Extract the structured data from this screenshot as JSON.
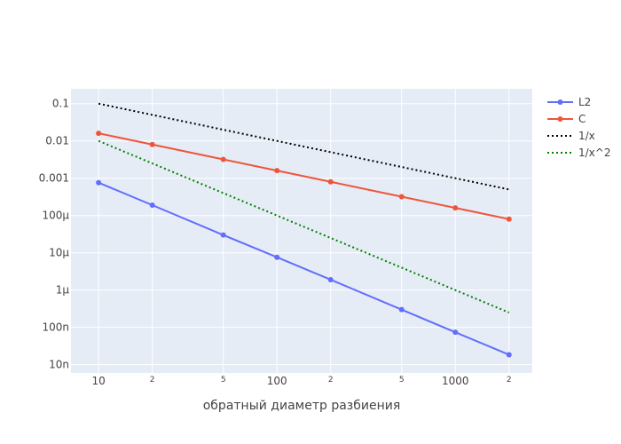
{
  "chart_data": {
    "type": "line",
    "title": "",
    "xlabel": "обратный диаметр разбиения",
    "ylabel": "",
    "x_scale": "log",
    "y_scale": "log",
    "xlim": [
      7,
      2700
    ],
    "ylim": [
      6e-09,
      0.25
    ],
    "grid": true,
    "legend_position": "right",
    "x_major_ticks": [
      {
        "value": 10,
        "label": "10"
      },
      {
        "value": 100,
        "label": "100"
      },
      {
        "value": 1000,
        "label": "1000"
      }
    ],
    "x_minor_ticks": [
      {
        "value": 20,
        "label": "2"
      },
      {
        "value": 50,
        "label": "5"
      },
      {
        "value": 200,
        "label": "2"
      },
      {
        "value": 500,
        "label": "5"
      },
      {
        "value": 2000,
        "label": "2"
      }
    ],
    "y_ticks": [
      {
        "value": 0.1,
        "label": "0.1"
      },
      {
        "value": 0.01,
        "label": "0.01"
      },
      {
        "value": 0.001,
        "label": "0.001"
      },
      {
        "value": 0.0001,
        "label": "100μ"
      },
      {
        "value": 1e-05,
        "label": "10μ"
      },
      {
        "value": 1e-06,
        "label": "1μ"
      },
      {
        "value": 1e-07,
        "label": "100n"
      },
      {
        "value": 1e-08,
        "label": "10n"
      }
    ],
    "series": [
      {
        "name": "L2",
        "color": "#636efa",
        "style": "solid",
        "markers": true,
        "x": [
          10,
          20,
          50,
          100,
          200,
          500,
          1000,
          2000
        ],
        "y": [
          0.00076,
          0.00019,
          3e-05,
          7.6e-06,
          1.9e-06,
          3e-07,
          7.4e-08,
          1.85e-08
        ]
      },
      {
        "name": "C",
        "color": "#ef553b",
        "style": "solid",
        "markers": true,
        "x": [
          10,
          20,
          50,
          100,
          200,
          500,
          1000,
          2000
        ],
        "y": [
          0.016,
          0.008,
          0.0032,
          0.0016,
          0.0008,
          0.00032,
          0.00016,
          8e-05
        ]
      },
      {
        "name": "1/x",
        "color": "#000000",
        "style": "dot",
        "markers": false,
        "x": [
          10,
          20,
          50,
          100,
          200,
          500,
          1000,
          2000
        ],
        "y": [
          0.1,
          0.05,
          0.02,
          0.01,
          0.005,
          0.002,
          0.001,
          0.0005
        ]
      },
      {
        "name": "1/x^2",
        "color": "#008000",
        "style": "dot",
        "markers": false,
        "x": [
          10,
          20,
          50,
          100,
          200,
          500,
          1000,
          2000
        ],
        "y": [
          0.01,
          0.0025,
          0.0004,
          0.0001,
          2.5e-05,
          4e-06,
          1e-06,
          2.5e-07
        ]
      }
    ]
  }
}
